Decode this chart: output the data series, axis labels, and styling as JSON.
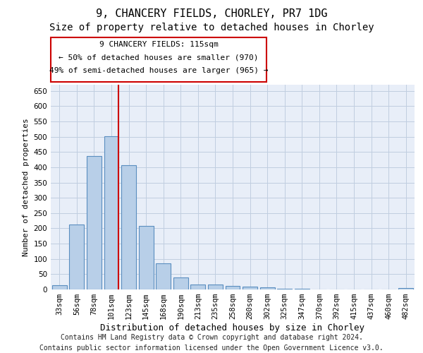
{
  "title1": "9, CHANCERY FIELDS, CHORLEY, PR7 1DG",
  "title2": "Size of property relative to detached houses in Chorley",
  "xlabel": "Distribution of detached houses by size in Chorley",
  "ylabel": "Number of detached properties",
  "categories": [
    "33sqm",
    "56sqm",
    "78sqm",
    "101sqm",
    "123sqm",
    "145sqm",
    "168sqm",
    "190sqm",
    "213sqm",
    "235sqm",
    "258sqm",
    "280sqm",
    "302sqm",
    "325sqm",
    "347sqm",
    "370sqm",
    "392sqm",
    "415sqm",
    "437sqm",
    "460sqm",
    "482sqm"
  ],
  "values": [
    14,
    212,
    436,
    502,
    406,
    207,
    85,
    39,
    17,
    16,
    12,
    10,
    6,
    3,
    2,
    1,
    1,
    1,
    0,
    0,
    4
  ],
  "bar_color": "#b8cfe8",
  "bar_edge_color": "#5a8ec0",
  "highlight_line_color": "#cc0000",
  "annotation_line1": "9 CHANCERY FIELDS: 115sqm",
  "annotation_line2": "← 50% of detached houses are smaller (970)",
  "annotation_line3": "49% of semi-detached houses are larger (965) →",
  "annotation_box_color": "#ffffff",
  "annotation_box_edge_color": "#cc0000",
  "ylim": [
    0,
    670
  ],
  "yticks": [
    0,
    50,
    100,
    150,
    200,
    250,
    300,
    350,
    400,
    450,
    500,
    550,
    600,
    650
  ],
  "grid_color": "#c0cee0",
  "bg_color": "#e8eef8",
  "footer1": "Contains HM Land Registry data © Crown copyright and database right 2024.",
  "footer2": "Contains public sector information licensed under the Open Government Licence v3.0.",
  "title1_fontsize": 11,
  "title2_fontsize": 10,
  "xlabel_fontsize": 9,
  "ylabel_fontsize": 8,
  "tick_fontsize": 7.5,
  "annotation_fontsize": 8,
  "footer_fontsize": 7
}
